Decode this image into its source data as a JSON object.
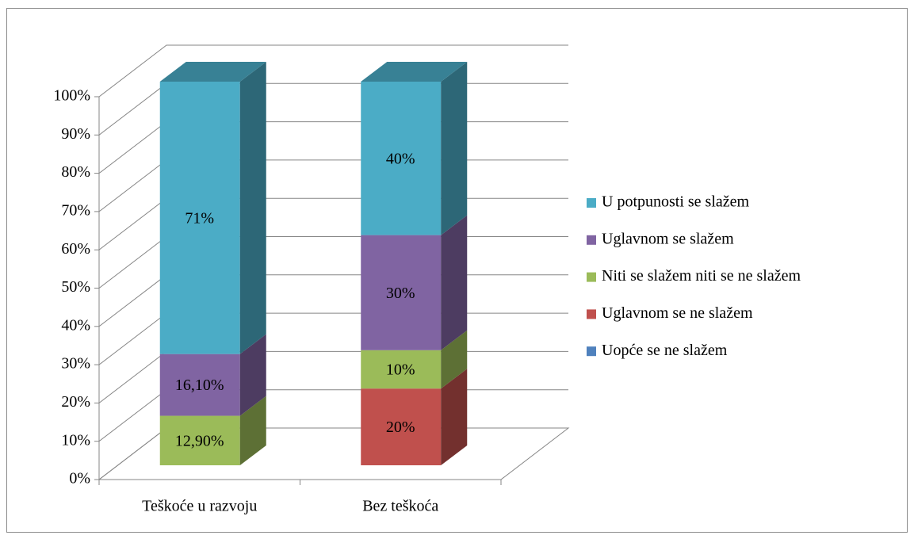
{
  "chart_data": {
    "type": "bar3d_stacked",
    "categories": [
      "Teškoće u razvoju",
      "Bez teškoća"
    ],
    "series": [
      {
        "name": "Uopće se ne slažem",
        "color": "#4f81bd",
        "values": [
          0,
          0
        ],
        "value_labels": [
          null,
          null
        ]
      },
      {
        "name": "Uglavnom se ne slažem",
        "color": "#c0504d",
        "values": [
          0,
          20
        ],
        "value_labels": [
          null,
          "20%"
        ]
      },
      {
        "name": "Niti se slažem niti se ne slažem",
        "color": "#9bbb59",
        "values": [
          12.9,
          10
        ],
        "value_labels": [
          "12,90%",
          "10%"
        ]
      },
      {
        "name": "Uglavnom se slažem",
        "color": "#8064a2",
        "values": [
          16.1,
          30
        ],
        "value_labels": [
          "16,10%",
          "30%"
        ]
      },
      {
        "name": "U potpunosti se slažem",
        "color": "#4bacc6",
        "values": [
          71,
          40
        ],
        "value_labels": [
          "71%",
          "40%"
        ]
      }
    ],
    "ylim": [
      0,
      100
    ],
    "yticks": [
      {
        "value": 0,
        "label": "0%"
      },
      {
        "value": 10,
        "label": "10%"
      },
      {
        "value": 20,
        "label": "20%"
      },
      {
        "value": 30,
        "label": "30%"
      },
      {
        "value": 40,
        "label": "40%"
      },
      {
        "value": 50,
        "label": "50%"
      },
      {
        "value": 60,
        "label": "60%"
      },
      {
        "value": 70,
        "label": "70%"
      },
      {
        "value": 80,
        "label": "80%"
      },
      {
        "value": 90,
        "label": "90%"
      },
      {
        "value": 100,
        "label": "100%"
      }
    ],
    "grid": true,
    "legend": "right"
  }
}
